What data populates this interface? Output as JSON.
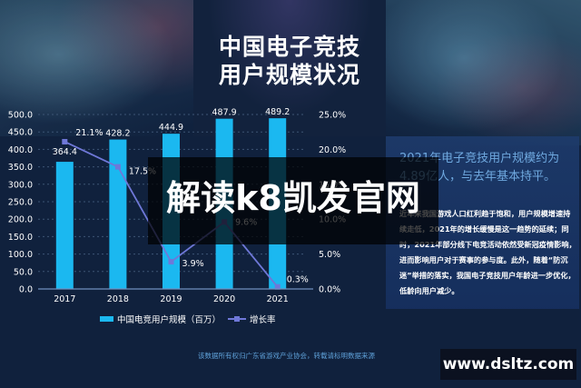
{
  "title": {
    "line1": "中国电子竞技",
    "line2": "用户规模状况"
  },
  "chart_data": {
    "type": "bar",
    "title": "中国电子竞技用户规模状况",
    "categories": [
      "2017",
      "2018",
      "2019",
      "2020",
      "2021"
    ],
    "series": [
      {
        "name": "中国电竞用户规模（百万）",
        "type": "bar",
        "axis": "left",
        "values": [
          364.4,
          428.2,
          444.9,
          487.9,
          489.2
        ],
        "color": "#1bb8f0"
      },
      {
        "name": "增长率",
        "type": "line",
        "axis": "right",
        "values": [
          21.1,
          17.5,
          3.9,
          9.6,
          0.3
        ],
        "unit": "%",
        "color": "#6f78d8"
      }
    ],
    "left_axis": {
      "ticks": [
        "0.0",
        "50.0",
        "100.0",
        "150.0",
        "200.0",
        "250.0",
        "300.0",
        "350.0",
        "400.0",
        "450.0",
        "500.0"
      ],
      "ylim": [
        0,
        500
      ]
    },
    "right_axis": {
      "ticks": [
        "0.0%",
        "5.0%",
        "10.0%",
        "15.0%",
        "20.0%",
        "25.0%"
      ],
      "ylim": [
        0,
        25
      ]
    },
    "data_labels_bar": [
      "364.4",
      "428.2",
      "444.9",
      "487.9",
      "489.2"
    ],
    "data_labels_line": [
      "21.1%",
      "17.5%",
      "3.9%",
      "9.6%",
      "0.3%"
    ],
    "grid": true,
    "legend_position": "bottom"
  },
  "legend": {
    "bar_label": "中国电竞用户规模（百万）",
    "line_label": "增长率"
  },
  "info": {
    "headline": "2021年电子竞技用户规模约为4.89亿人，与去年基本持平。",
    "body": "近年来我国游戏人口红利趋于饱和，用户规模增速持续走低，2021年的增长缓慢是这一趋势的延续；同时，2021年部分线下电竞活动依然受新冠疫情影响，进而影响用户对于赛事的参与度。此外，随着“防沉迷”举措的落实，我国电子竞技用户年龄进一步优化，低龄向用户减少。"
  },
  "overlay": {
    "text": "解读k8凯发官网"
  },
  "footer": {
    "source": "该数据所有权归广东省游戏产业协会，转载请标明数据来源"
  },
  "watermark": {
    "text": "www.dsltz.com"
  }
}
